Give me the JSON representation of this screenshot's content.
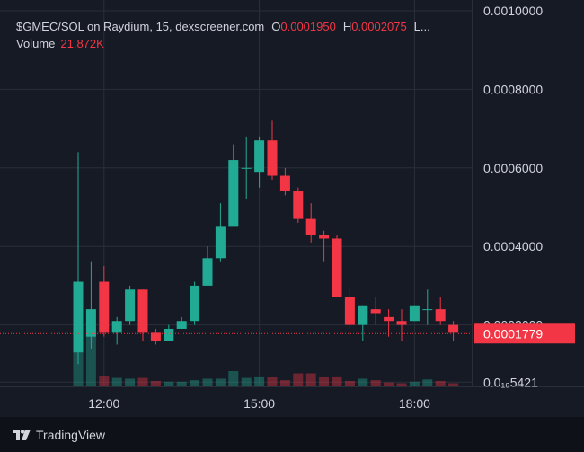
{
  "legend": {
    "title": "$GMEC/SOL on Raydium, 15, dexscreener.com",
    "open_label": "O",
    "open_value": "0.0001950",
    "high_label": "H",
    "high_value": "0.0002075",
    "more": "L...",
    "volume_label": "Volume",
    "volume_value": "21.872K"
  },
  "footer": {
    "brand": "TradingView"
  },
  "colors": {
    "up": "#22ab94",
    "down": "#f23645",
    "background": "#161a25",
    "grid": "#2a2e39"
  },
  "chart_data": {
    "type": "candlestick",
    "y_axis": {
      "range": [
        0.0,
        0.001
      ],
      "tick_values": [
        0.001,
        0.0008,
        0.0006,
        0.0004,
        0.0002,
        5.421e-05
      ],
      "tick_labels": [
        "0.0010000",
        "0.0008000",
        "0.0006000",
        "0.0004000",
        "0.0002000",
        "0.0₁₉5421"
      ]
    },
    "x_axis": {
      "tick_labels": [
        "12:00",
        "15:00",
        "18:00"
      ],
      "tick_index": [
        2,
        14,
        26
      ]
    },
    "last_price": "0.0001779",
    "candles": [
      {
        "o": 0.00013,
        "h": 0.00064,
        "l": 0.0001,
        "c": 0.00031,
        "v": 95
      },
      {
        "o": 0.00017,
        "h": 0.00036,
        "l": 0.00014,
        "c": 0.00024,
        "v": 72
      },
      {
        "o": 0.00031,
        "h": 0.00035,
        "l": 0.00017,
        "c": 0.00018,
        "v": 13
      },
      {
        "o": 0.00018,
        "h": 0.00022,
        "l": 0.00015,
        "c": 0.00021,
        "v": 10
      },
      {
        "o": 0.00021,
        "h": 0.0003,
        "l": 0.0002,
        "c": 0.00029,
        "v": 9
      },
      {
        "o": 0.00029,
        "h": 0.00029,
        "l": 0.00016,
        "c": 0.00018,
        "v": 10
      },
      {
        "o": 0.00018,
        "h": 0.00019,
        "l": 0.00015,
        "c": 0.00016,
        "v": 6
      },
      {
        "o": 0.00016,
        "h": 0.0002,
        "l": 0.00016,
        "c": 0.00019,
        "v": 5
      },
      {
        "o": 0.00019,
        "h": 0.00022,
        "l": 0.00019,
        "c": 0.00021,
        "v": 5
      },
      {
        "o": 0.00021,
        "h": 0.00031,
        "l": 0.0002,
        "c": 0.0003,
        "v": 7
      },
      {
        "o": 0.0003,
        "h": 0.0004,
        "l": 0.0003,
        "c": 0.00037,
        "v": 9
      },
      {
        "o": 0.00037,
        "h": 0.00051,
        "l": 0.00036,
        "c": 0.00045,
        "v": 9
      },
      {
        "o": 0.00045,
        "h": 0.00066,
        "l": 0.00045,
        "c": 0.00062,
        "v": 19
      },
      {
        "o": 0.0006,
        "h": 0.00068,
        "l": 0.00052,
        "c": 0.0006,
        "v": 10
      },
      {
        "o": 0.00059,
        "h": 0.00068,
        "l": 0.00055,
        "c": 0.00067,
        "v": 12
      },
      {
        "o": 0.00067,
        "h": 0.00072,
        "l": 0.00057,
        "c": 0.00058,
        "v": 11
      },
      {
        "o": 0.00058,
        "h": 0.0006,
        "l": 0.00053,
        "c": 0.00054,
        "v": 7
      },
      {
        "o": 0.00054,
        "h": 0.00055,
        "l": 0.00046,
        "c": 0.00047,
        "v": 16
      },
      {
        "o": 0.00047,
        "h": 0.00051,
        "l": 0.00041,
        "c": 0.00043,
        "v": 16
      },
      {
        "o": 0.00043,
        "h": 0.00044,
        "l": 0.00036,
        "c": 0.00042,
        "v": 11
      },
      {
        "o": 0.00042,
        "h": 0.00043,
        "l": 0.00027,
        "c": 0.00027,
        "v": 12
      },
      {
        "o": 0.00027,
        "h": 0.00029,
        "l": 0.00019,
        "c": 0.0002,
        "v": 6
      },
      {
        "o": 0.0002,
        "h": 0.00025,
        "l": 0.00016,
        "c": 0.00025,
        "v": 9
      },
      {
        "o": 0.00024,
        "h": 0.00027,
        "l": 0.0002,
        "c": 0.00023,
        "v": 7
      },
      {
        "o": 0.00022,
        "h": 0.00024,
        "l": 0.00017,
        "c": 0.00021,
        "v": 4
      },
      {
        "o": 0.00021,
        "h": 0.00024,
        "l": 0.00016,
        "c": 0.0002,
        "v": 3
      },
      {
        "o": 0.00021,
        "h": 0.00025,
        "l": 0.00021,
        "c": 0.00025,
        "v": 5
      },
      {
        "o": 0.00024,
        "h": 0.00029,
        "l": 0.0002,
        "c": 0.00024,
        "v": 8
      },
      {
        "o": 0.00024,
        "h": 0.00027,
        "l": 0.0002,
        "c": 0.00021,
        "v": 6
      },
      {
        "o": 0.0002,
        "h": 0.00021,
        "l": 0.00016,
        "c": 0.00018,
        "v": 3
      }
    ]
  }
}
